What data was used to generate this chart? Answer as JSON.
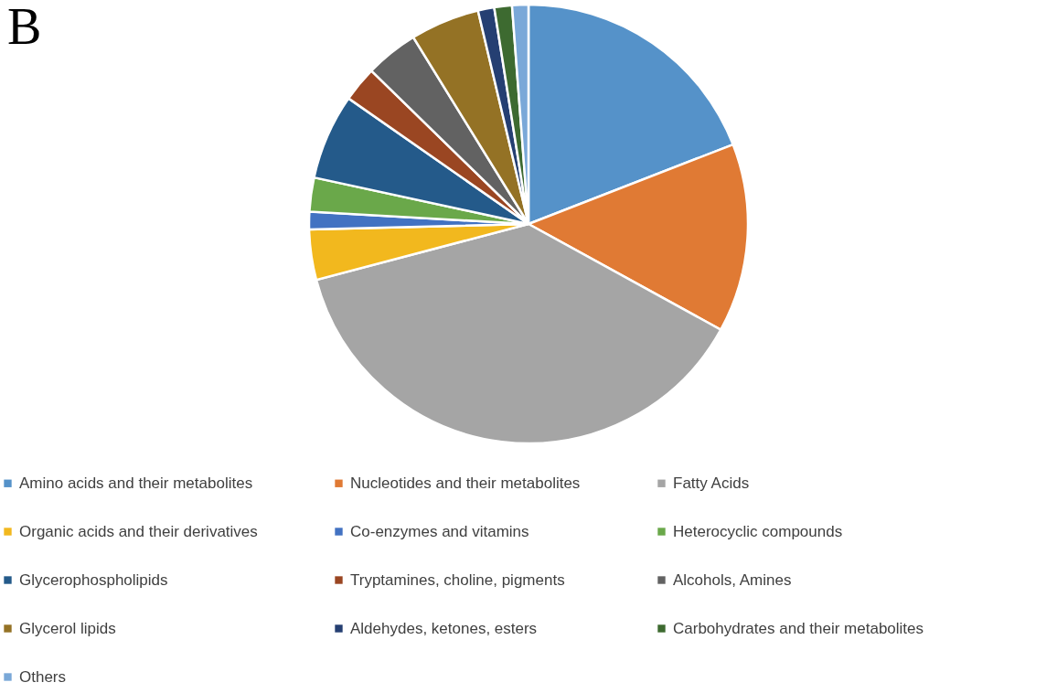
{
  "chart_data": {
    "type": "pie",
    "title": "B",
    "categories": [
      "Amino acids and their metabolites",
      "Nucleotides and their metabolites",
      "Fatty Acids",
      "Organic acids and their derivatives",
      "Co-enzymes and vitamins",
      "Heterocyclic compounds",
      "Glycerophospholipids",
      "Tryptamines, choline, pigments",
      "Alcohols, Amines",
      "Glycerol lipids",
      "Aldehydes, ketones, esters",
      "Carbohydrates and their metabolites",
      "Others"
    ],
    "values": [
      19.1,
      13.9,
      37.9,
      3.7,
      1.3,
      2.5,
      6.3,
      2.6,
      3.9,
      5.1,
      1.2,
      1.3,
      1.2
    ],
    "colors": [
      "#5592c9",
      "#e07a34",
      "#a5a5a5",
      "#f2b81e",
      "#4272c2",
      "#6aa84a",
      "#245a8a",
      "#9a4622",
      "#626262",
      "#947225",
      "#253f72",
      "#3d6a30",
      "#7aa8d8"
    ],
    "legend": "bottom"
  }
}
